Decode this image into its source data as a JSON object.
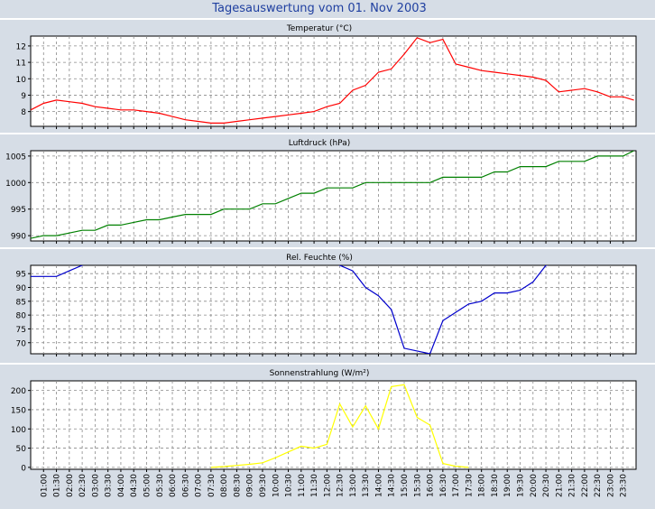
{
  "window": {
    "title": "Tagesauswertung vom 01. Nov 2003",
    "background": "#d6dde6",
    "title_color": "#1f3fa0"
  },
  "x_ticks": [
    "01:00",
    "01:30",
    "02:00",
    "02:30",
    "03:00",
    "03:30",
    "04:00",
    "04:30",
    "05:00",
    "05:30",
    "06:00",
    "06:30",
    "07:00",
    "07:30",
    "08:00",
    "08:30",
    "09:00",
    "09:30",
    "10:00",
    "10:30",
    "11:00",
    "11:30",
    "12:00",
    "12:30",
    "13:00",
    "13:30",
    "14:00",
    "14:30",
    "15:00",
    "15:30",
    "16:00",
    "16:30",
    "17:00",
    "17:30",
    "18:00",
    "18:30",
    "19:00",
    "19:30",
    "20:00",
    "20:30",
    "21:00",
    "21:30",
    "22:00",
    "22:30",
    "23:00",
    "23:30"
  ],
  "chart_data": [
    {
      "type": "line",
      "title": "Temperatur (°C)",
      "color": "#ff0000",
      "ylim": [
        7.1,
        12.6
      ],
      "yticks": [
        8,
        9,
        10,
        11,
        12
      ],
      "grid": true,
      "x": [
        "00:30",
        "01:00",
        "01:30",
        "02:00",
        "02:30",
        "03:00",
        "03:30",
        "04:00",
        "04:30",
        "05:00",
        "05:30",
        "06:00",
        "06:30",
        "07:00",
        "07:30",
        "08:00",
        "08:30",
        "09:00",
        "09:30",
        "10:00",
        "10:30",
        "11:00",
        "11:30",
        "12:00",
        "12:30",
        "13:00",
        "13:30",
        "14:00",
        "14:30",
        "15:00",
        "15:30",
        "16:00",
        "16:30",
        "17:00",
        "17:30",
        "18:00",
        "18:30",
        "19:00",
        "19:30",
        "20:00",
        "20:30",
        "21:00",
        "21:30",
        "22:00",
        "22:30",
        "23:00",
        "23:30",
        "23:55"
      ],
      "values": [
        8.1,
        8.5,
        8.7,
        8.6,
        8.5,
        8.3,
        8.2,
        8.1,
        8.1,
        8.0,
        7.9,
        7.7,
        7.5,
        7.4,
        7.3,
        7.3,
        7.4,
        7.5,
        7.6,
        7.7,
        7.8,
        7.9,
        8.0,
        8.3,
        8.5,
        9.3,
        9.6,
        10.4,
        10.6,
        11.5,
        12.5,
        12.2,
        12.4,
        10.9,
        10.7,
        10.5,
        10.4,
        10.3,
        10.2,
        10.1,
        9.9,
        9.2,
        9.3,
        9.4,
        9.2,
        8.9,
        8.9,
        8.7
      ]
    },
    {
      "type": "line",
      "title": "Luftdruck (hPa)",
      "color": "#008000",
      "ylim": [
        989,
        1006
      ],
      "yticks": [
        990,
        995,
        1000,
        1005
      ],
      "grid": true,
      "x": [
        "00:30",
        "01:00",
        "01:30",
        "02:00",
        "02:30",
        "03:00",
        "03:30",
        "04:00",
        "04:30",
        "05:00",
        "05:30",
        "06:00",
        "06:30",
        "07:00",
        "07:30",
        "08:00",
        "08:30",
        "09:00",
        "09:30",
        "10:00",
        "10:30",
        "11:00",
        "11:30",
        "12:00",
        "12:30",
        "13:00",
        "13:30",
        "14:00",
        "14:30",
        "15:00",
        "15:30",
        "16:00",
        "16:30",
        "17:00",
        "17:30",
        "18:00",
        "18:30",
        "19:00",
        "19:30",
        "20:00",
        "20:30",
        "21:00",
        "21:30",
        "22:00",
        "22:30",
        "23:00",
        "23:30",
        "23:55"
      ],
      "values": [
        989.5,
        990,
        990,
        990.5,
        991,
        991,
        992,
        992,
        992.5,
        993,
        993,
        993.5,
        994,
        994,
        994,
        995,
        995,
        995,
        996,
        996,
        997,
        998,
        998,
        999,
        999,
        999,
        1000,
        1000,
        1000,
        1000,
        1000,
        1000,
        1001,
        1001,
        1001,
        1001,
        1002,
        1002,
        1003,
        1003,
        1003,
        1004,
        1004,
        1004,
        1005,
        1005,
        1005,
        1006
      ]
    },
    {
      "type": "line",
      "title": "Rel. Feuchte (%)",
      "color": "#0000cc",
      "ylim": [
        66,
        98
      ],
      "yticks": [
        70,
        75,
        80,
        85,
        90,
        95
      ],
      "grid": true,
      "x": [
        "00:30",
        "01:00",
        "01:30",
        "02:00",
        "02:30",
        "03:00",
        "11:30",
        "12:00",
        "12:30",
        "13:00",
        "13:30",
        "14:00",
        "14:30",
        "15:00",
        "15:30",
        "16:00",
        "16:30",
        "17:00",
        "17:30",
        "18:00",
        "18:30",
        "19:00",
        "19:30",
        "20:00",
        "20:30",
        "21:00",
        "21:30",
        "22:00",
        "23:55"
      ],
      "values": [
        94,
        94,
        94,
        96,
        98,
        100,
        100,
        100,
        98,
        96,
        90,
        87,
        82,
        68,
        67,
        66,
        78,
        81,
        84,
        85,
        88,
        88,
        89,
        92,
        98,
        99,
        100,
        100,
        100
      ]
    },
    {
      "type": "area",
      "title": "Sonnenstrahlung (W/m²)",
      "color": "#ffff00",
      "ylim": [
        -5,
        225
      ],
      "yticks": [
        0,
        50,
        100,
        150,
        200
      ],
      "grid": true,
      "x": [
        "07:30",
        "08:00",
        "08:30",
        "09:00",
        "09:30",
        "10:00",
        "10:30",
        "11:00",
        "11:30",
        "12:00",
        "12:30",
        "13:00",
        "13:30",
        "14:00",
        "14:30",
        "15:00",
        "15:30",
        "16:00",
        "16:30",
        "17:00",
        "17:30"
      ],
      "values": [
        0,
        2,
        5,
        8,
        12,
        25,
        40,
        55,
        50,
        60,
        165,
        105,
        160,
        100,
        210,
        215,
        130,
        110,
        10,
        3,
        0
      ]
    }
  ]
}
